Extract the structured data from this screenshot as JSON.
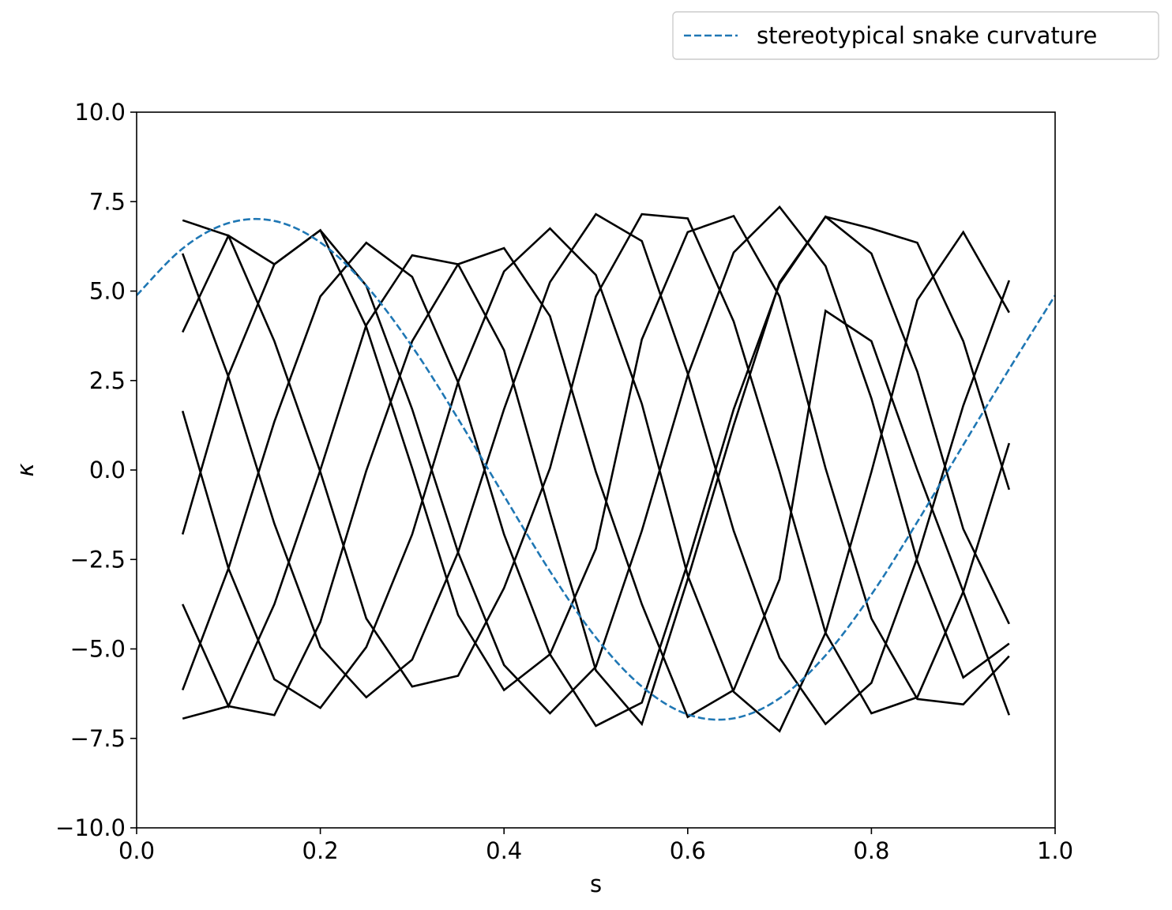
{
  "chart_data": {
    "type": "line",
    "xlabel": "s",
    "ylabel": "κ",
    "xlim": [
      0.0,
      1.0
    ],
    "ylim": [
      -10.0,
      10.0
    ],
    "grid": false,
    "legend_position": "top-right (outside plot)",
    "xticks": [
      0.0,
      0.2,
      0.4,
      0.6,
      0.8,
      1.0
    ],
    "xtick_labels": [
      "0.0",
      "0.2",
      "0.4",
      "0.6",
      "0.8",
      "1.0"
    ],
    "yticks": [
      10.0,
      7.5,
      5.0,
      2.5,
      0.0,
      -2.5,
      -5.0,
      -7.5,
      -10.0
    ],
    "ytick_labels": [
      "10.0",
      "7.5",
      "5.0",
      "2.5",
      "0.0",
      "−2.5",
      "−5.0",
      "−7.5",
      "−10.0"
    ],
    "reference_curve": {
      "name": "stereotypical snake curvature",
      "color": "#1f77b4",
      "style": "dashed",
      "s": [
        0.0,
        0.05,
        0.1,
        0.15,
        0.2,
        0.25,
        0.3,
        0.35,
        0.4,
        0.45,
        0.5,
        0.55,
        0.6,
        0.65,
        0.7,
        0.75,
        0.8,
        0.85,
        0.9,
        0.95,
        1.0
      ],
      "kappa": [
        4.88,
        6.19,
        6.9,
        6.96,
        6.36,
        5.15,
        3.45,
        1.43,
        -0.72,
        -2.83,
        -4.68,
        -6.05,
        -6.83,
        -6.94,
        -6.38,
        -5.18,
        -3.48,
        -1.45,
        0.7,
        2.82,
        4.88
      ]
    },
    "sample_color": "#000000",
    "s": [
      0.05,
      0.1,
      0.15,
      0.2,
      0.25,
      0.3,
      0.35,
      0.4,
      0.45,
      0.5,
      0.55,
      0.6,
      0.65,
      0.7,
      0.75,
      0.8,
      0.85,
      0.9,
      0.95
    ],
    "series": [
      {
        "values": [
          6.98,
          6.55,
          3.6,
          -0.05,
          -4.15,
          -6.05,
          -5.75,
          -3.3,
          0.05,
          4.85,
          7.15,
          7.03,
          4.15,
          -0.05,
          -4.55,
          -6.8,
          -6.35,
          -3.4,
          0.75
        ]
      },
      {
        "values": [
          6.05,
          2.6,
          -1.5,
          -4.95,
          -6.35,
          -5.3,
          -2.3,
          1.7,
          5.25,
          7.15,
          6.4,
          2.7,
          -1.7,
          -5.25,
          -7.1,
          -5.95,
          -2.45,
          1.8,
          5.3
        ]
      },
      {
        "values": [
          3.85,
          6.55,
          5.75,
          6.7,
          5.15,
          1.7,
          -2.3,
          -5.45,
          -6.8,
          -5.5,
          -1.7,
          2.65,
          6.08,
          7.35,
          5.7,
          2.0,
          -2.55,
          -5.8,
          -4.85
        ]
      },
      {
        "values": [
          1.65,
          -2.75,
          -5.85,
          -6.65,
          -4.95,
          -1.8,
          2.45,
          5.55,
          6.75,
          5.45,
          1.85,
          -2.95,
          -6.2,
          -7.3,
          -4.55,
          -0.05,
          4.75,
          6.65,
          4.4
        ]
      },
      {
        "values": [
          -1.8,
          2.65,
          5.75,
          6.7,
          4.0,
          0.05,
          -4.05,
          -6.15,
          -5.15,
          -2.2,
          3.65,
          6.65,
          7.1,
          4.85,
          0.05,
          -4.15,
          -6.4,
          -6.55,
          -5.2
        ]
      },
      {
        "values": [
          -3.75,
          -6.6,
          -3.75,
          0.0,
          4.05,
          6.0,
          5.75,
          3.35,
          -1.2,
          -5.6,
          -7.1,
          -3.05,
          1.25,
          5.25,
          7.08,
          6.05,
          2.75,
          -1.65,
          -4.3
        ]
      },
      {
        "values": [
          -6.15,
          -2.75,
          1.35,
          4.85,
          6.35,
          5.4,
          2.45,
          -1.8,
          -5.15,
          -7.15,
          -6.5,
          -2.6,
          1.7,
          5.2,
          7.08,
          6.75,
          6.35,
          3.6,
          -0.55
        ]
      },
      {
        "values": [
          -6.95,
          -6.6,
          -6.85,
          -4.25,
          -0.02,
          3.6,
          5.75,
          6.2,
          4.3,
          -0.05,
          -3.75,
          -6.9,
          -6.15,
          -3.05,
          4.45,
          3.6,
          0.0,
          -3.4,
          -6.85
        ]
      }
    ]
  },
  "legend": {
    "label": "stereotypical snake curvature"
  }
}
